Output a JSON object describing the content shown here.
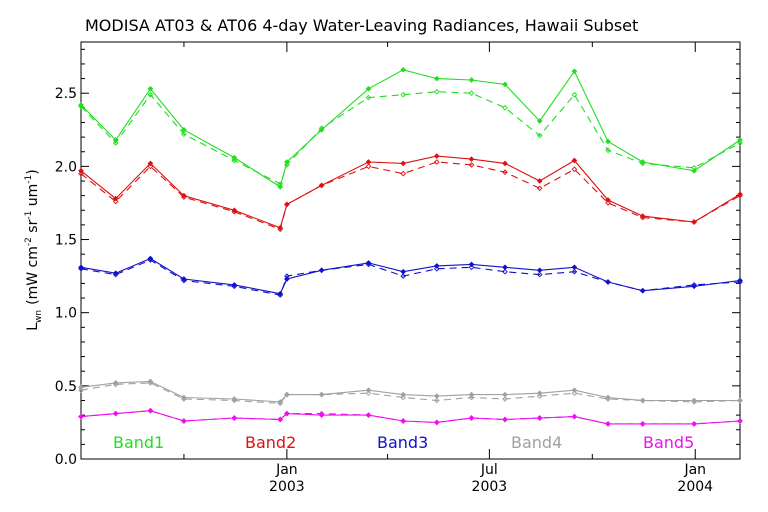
{
  "chart_data": {
    "type": "line",
    "title": "MODISA AT03 & AT06 4-day Water-Leaving Radiances, Hawaii Subset",
    "ylabel": {
      "main": "L",
      "main_sub": "wn",
      "units_prefix": "(mW cm",
      "exp1": "-2",
      "mid": " sr",
      "exp2": "-1",
      "units_suffix": " um",
      "exp3": "-1",
      "close": ")"
    },
    "xlabel": "",
    "ylim": [
      0,
      2.85
    ],
    "xlim": [
      "2002-07-01",
      "2004-02-10"
    ],
    "y_ticks": [
      0.0,
      0.5,
      1.0,
      1.5,
      2.0,
      2.5
    ],
    "y_tick_labels": [
      "0.0",
      "0.5",
      "1.0",
      "1.5",
      "2.0",
      "2.5"
    ],
    "x_major_ticks": [
      {
        "date": "2003-01-01",
        "month": "Jan",
        "year": "2003"
      },
      {
        "date": "2003-07-01",
        "month": "Jul",
        "year": "2003"
      },
      {
        "date": "2004-01-01",
        "month": "Jan",
        "year": "2004"
      }
    ],
    "x_minor_ticks": [
      "2002-10-01",
      "2003-04-01",
      "2003-10-01"
    ],
    "dates": [
      "2002-07-01",
      "2002-08-01",
      "2002-09-01",
      "2002-10-01",
      "2002-11-15",
      "2002-12-26",
      "2003-01-01",
      "2003-02-01",
      "2003-03-15",
      "2003-04-15",
      "2003-05-15",
      "2003-06-15",
      "2003-07-15",
      "2003-08-15",
      "2003-09-15",
      "2003-10-15",
      "2003-11-15",
      "2003-12-31",
      "2004-02-10"
    ],
    "legend": [
      {
        "label": "Band1",
        "color": "#22dd22"
      },
      {
        "label": "Band2",
        "color": "#dd1111"
      },
      {
        "label": "Band3",
        "color": "#1111cc"
      },
      {
        "label": "Band4",
        "color": "#a0a0a0"
      },
      {
        "label": "Band5",
        "color": "#ee11ee"
      }
    ],
    "series": [
      {
        "band": "Band1",
        "color": "#22dd22",
        "style": "solid",
        "values": [
          2.42,
          2.18,
          2.53,
          2.25,
          2.06,
          1.86,
          2.03,
          2.25,
          2.53,
          2.66,
          2.6,
          2.59,
          2.56,
          2.31,
          2.65,
          2.17,
          2.03,
          1.97,
          2.18
        ]
      },
      {
        "band": "Band1",
        "color": "#22dd22",
        "style": "dashed",
        "values": [
          2.41,
          2.16,
          2.49,
          2.22,
          2.04,
          1.88,
          2.01,
          2.26,
          2.47,
          2.49,
          2.51,
          2.5,
          2.4,
          2.21,
          2.49,
          2.11,
          2.02,
          1.99,
          2.16
        ]
      },
      {
        "band": "Band2",
        "color": "#dd1111",
        "style": "solid",
        "values": [
          1.97,
          1.78,
          2.02,
          1.8,
          1.7,
          1.58,
          1.74,
          1.87,
          2.03,
          2.02,
          2.07,
          2.05,
          2.02,
          1.9,
          2.04,
          1.77,
          1.66,
          1.62,
          1.81
        ]
      },
      {
        "band": "Band2",
        "color": "#dd1111",
        "style": "dashed",
        "values": [
          1.95,
          1.76,
          2.0,
          1.79,
          1.69,
          1.57,
          1.74,
          1.87,
          2.0,
          1.95,
          2.03,
          2.01,
          1.96,
          1.85,
          1.98,
          1.75,
          1.65,
          1.62,
          1.8
        ]
      },
      {
        "band": "Band3",
        "color": "#1111cc",
        "style": "solid",
        "values": [
          1.31,
          1.27,
          1.37,
          1.23,
          1.19,
          1.13,
          1.23,
          1.29,
          1.34,
          1.28,
          1.32,
          1.33,
          1.31,
          1.29,
          1.31,
          1.21,
          1.15,
          1.18,
          1.22
        ]
      },
      {
        "band": "Band3",
        "color": "#1111cc",
        "style": "dashed",
        "values": [
          1.3,
          1.26,
          1.36,
          1.22,
          1.18,
          1.12,
          1.25,
          1.29,
          1.33,
          1.25,
          1.3,
          1.31,
          1.28,
          1.26,
          1.28,
          1.21,
          1.15,
          1.19,
          1.21
        ]
      },
      {
        "band": "Band4",
        "color": "#a0a0a0",
        "style": "solid",
        "values": [
          0.49,
          0.52,
          0.53,
          0.42,
          0.41,
          0.39,
          0.44,
          0.44,
          0.47,
          0.44,
          0.43,
          0.44,
          0.44,
          0.45,
          0.47,
          0.42,
          0.4,
          0.4,
          0.4
        ]
      },
      {
        "band": "Band4",
        "color": "#a0a0a0",
        "style": "dashed",
        "values": [
          0.47,
          0.51,
          0.52,
          0.41,
          0.4,
          0.38,
          0.44,
          0.44,
          0.45,
          0.42,
          0.4,
          0.42,
          0.41,
          0.43,
          0.45,
          0.41,
          0.4,
          0.39,
          0.4
        ]
      },
      {
        "band": "Band5",
        "color": "#ee11ee",
        "style": "solid",
        "values": [
          0.29,
          0.31,
          0.33,
          0.26,
          0.28,
          0.27,
          0.31,
          0.3,
          0.3,
          0.26,
          0.25,
          0.28,
          0.27,
          0.28,
          0.29,
          0.24,
          0.24,
          0.24,
          0.26
        ]
      },
      {
        "band": "Band5",
        "color": "#ee11ee",
        "style": "dashed",
        "values": [
          0.29,
          0.31,
          0.33,
          0.26,
          0.28,
          0.27,
          0.31,
          0.31,
          0.3,
          0.26,
          0.25,
          0.28,
          0.27,
          0.28,
          0.29,
          0.24,
          0.24,
          0.24,
          0.26
        ]
      }
    ]
  }
}
